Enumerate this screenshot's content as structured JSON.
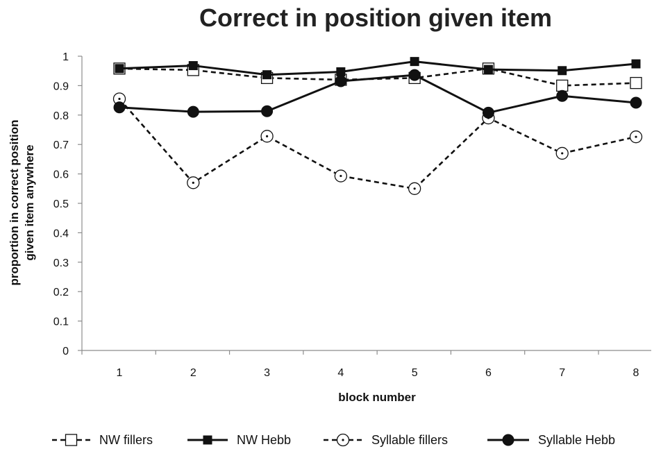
{
  "chart_data": {
    "type": "line",
    "title": "Correct in position given item",
    "xlabel": "block number",
    "ylabel_lines": [
      "proportion in correct position",
      "given item anywhere"
    ],
    "x": [
      1,
      2,
      3,
      4,
      5,
      6,
      7,
      8
    ],
    "x_tick_labels": [
      "1",
      "2",
      "3",
      "4",
      "5",
      "6",
      "7",
      "8"
    ],
    "ylim": [
      0,
      1
    ],
    "y_ticks": [
      0,
      0.1,
      0.2,
      0.3,
      0.4,
      0.5,
      0.6,
      0.7,
      0.8,
      0.9,
      1
    ],
    "y_tick_labels": [
      "0",
      "0.1",
      "0.2",
      "0.3",
      "0.4",
      "0.5",
      "0.6",
      "0.7",
      "0.8",
      "0.9",
      "1"
    ],
    "grid": false,
    "legend_position": "bottom",
    "series": [
      {
        "name": "NW fillers",
        "line_style": "dashed",
        "marker": "open-square",
        "values": [
          0.958,
          0.953,
          0.926,
          0.92,
          0.926,
          0.958,
          0.9,
          0.909
        ]
      },
      {
        "name": "NW Hebb",
        "line_style": "solid",
        "marker": "filled-square",
        "values": [
          0.958,
          0.968,
          0.937,
          0.947,
          0.982,
          0.955,
          0.951,
          0.974
        ]
      },
      {
        "name": "Syllable fillers",
        "line_style": "dashed",
        "marker": "open-circle",
        "values": [
          0.855,
          0.57,
          0.728,
          0.593,
          0.55,
          0.79,
          0.67,
          0.726
        ]
      },
      {
        "name": "Syllable Hebb",
        "line_style": "solid",
        "marker": "filled-circle",
        "values": [
          0.826,
          0.811,
          0.813,
          0.915,
          0.936,
          0.808,
          0.865,
          0.842
        ]
      }
    ],
    "colors": {
      "line": "#111111",
      "axis": "#8c8c8c"
    }
  }
}
